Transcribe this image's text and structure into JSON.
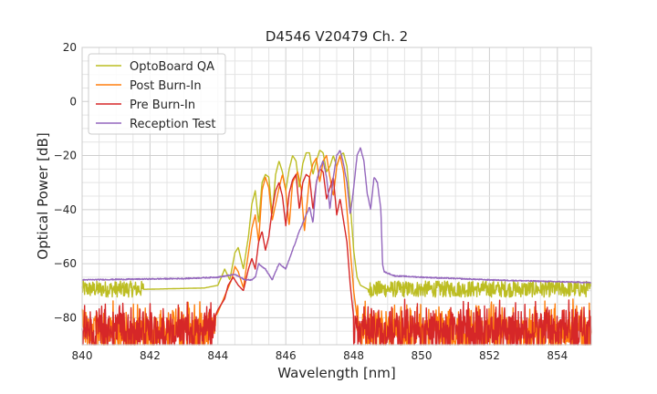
{
  "chart_data": {
    "type": "line",
    "title": "D4546 V20479 Ch. 2",
    "xlabel": "Wavelength [nm]",
    "ylabel": "Optical Power [dB]",
    "xlim": [
      840,
      855
    ],
    "ylim": [
      -90,
      20
    ],
    "xticks": [
      840,
      842,
      844,
      846,
      848,
      850,
      852,
      854
    ],
    "yticks": [
      20,
      0,
      -20,
      -40,
      -60,
      -80
    ],
    "x_minor_step": 0.5,
    "y_minor_step": 5,
    "grid": true,
    "legend_position": "top-left",
    "series": [
      {
        "name": "OptoBoard QA",
        "color": "#bcbd22",
        "noise_floor": -70,
        "noise_amplitude": 3,
        "points": [
          [
            840,
            -70
          ],
          [
            843.6,
            -69
          ],
          [
            844,
            -68
          ],
          [
            844.2,
            -62
          ],
          [
            844.35,
            -66
          ],
          [
            844.5,
            -56
          ],
          [
            844.6,
            -54
          ],
          [
            844.75,
            -62
          ],
          [
            844.9,
            -50
          ],
          [
            845,
            -38
          ],
          [
            845.1,
            -33
          ],
          [
            845.2,
            -45
          ],
          [
            845.3,
            -30
          ],
          [
            845.4,
            -27
          ],
          [
            845.5,
            -28
          ],
          [
            845.6,
            -42
          ],
          [
            845.7,
            -27
          ],
          [
            845.8,
            -22
          ],
          [
            845.9,
            -26
          ],
          [
            846,
            -33
          ],
          [
            846.1,
            -25
          ],
          [
            846.2,
            -20
          ],
          [
            846.3,
            -22
          ],
          [
            846.4,
            -32
          ],
          [
            846.5,
            -23
          ],
          [
            846.6,
            -19
          ],
          [
            846.7,
            -19
          ],
          [
            846.8,
            -27
          ],
          [
            846.9,
            -22
          ],
          [
            847,
            -18
          ],
          [
            847.1,
            -19
          ],
          [
            847.2,
            -26
          ],
          [
            847.3,
            -24
          ],
          [
            847.4,
            -20
          ],
          [
            847.5,
            -24
          ],
          [
            847.6,
            -20
          ],
          [
            847.7,
            -19
          ],
          [
            847.8,
            -24
          ],
          [
            847.9,
            -38
          ],
          [
            848,
            -55
          ],
          [
            848.1,
            -65
          ],
          [
            848.2,
            -68
          ],
          [
            848.5,
            -70
          ],
          [
            855,
            -71
          ]
        ]
      },
      {
        "name": "Post Burn-In",
        "color": "#ff7f0e",
        "noise_floor": -80,
        "noise_amplitude": 12,
        "points": [
          [
            840,
            -80
          ],
          [
            843.9,
            -80
          ],
          [
            844,
            -78
          ],
          [
            844.2,
            -72
          ],
          [
            844.4,
            -66
          ],
          [
            844.5,
            -61
          ],
          [
            844.6,
            -63
          ],
          [
            844.75,
            -69
          ],
          [
            844.9,
            -56
          ],
          [
            845,
            -47
          ],
          [
            845.1,
            -42
          ],
          [
            845.2,
            -52
          ],
          [
            845.3,
            -33
          ],
          [
            845.4,
            -28
          ],
          [
            845.5,
            -32
          ],
          [
            845.6,
            -44
          ],
          [
            845.8,
            -32
          ],
          [
            845.9,
            -27
          ],
          [
            846,
            -33
          ],
          [
            846.1,
            -46
          ],
          [
            846.2,
            -30
          ],
          [
            846.35,
            -26
          ],
          [
            846.45,
            -32
          ],
          [
            846.55,
            -48
          ],
          [
            846.7,
            -28
          ],
          [
            846.8,
            -23
          ],
          [
            846.9,
            -21
          ],
          [
            847,
            -30
          ],
          [
            847.1,
            -22
          ],
          [
            847.2,
            -20
          ],
          [
            847.3,
            -28
          ],
          [
            847.4,
            -35
          ],
          [
            847.5,
            -24
          ],
          [
            847.6,
            -20
          ],
          [
            847.7,
            -26
          ],
          [
            847.8,
            -40
          ],
          [
            847.9,
            -55
          ],
          [
            848,
            -70
          ],
          [
            848.1,
            -80
          ],
          [
            855,
            -80
          ]
        ]
      },
      {
        "name": "Pre Burn-In",
        "color": "#d62728",
        "noise_floor": -80,
        "noise_amplitude": 12,
        "points": [
          [
            840,
            -80
          ],
          [
            843.9,
            -80
          ],
          [
            844,
            -77
          ],
          [
            844.2,
            -73
          ],
          [
            844.3,
            -68
          ],
          [
            844.45,
            -65
          ],
          [
            844.6,
            -68
          ],
          [
            844.75,
            -70
          ],
          [
            844.9,
            -62
          ],
          [
            845,
            -58
          ],
          [
            845.1,
            -62
          ],
          [
            845.2,
            -52
          ],
          [
            845.3,
            -48
          ],
          [
            845.4,
            -55
          ],
          [
            845.5,
            -50
          ],
          [
            845.6,
            -40
          ],
          [
            845.7,
            -33
          ],
          [
            845.8,
            -30
          ],
          [
            845.9,
            -35
          ],
          [
            846,
            -46
          ],
          [
            846.1,
            -34
          ],
          [
            846.2,
            -29
          ],
          [
            846.3,
            -27
          ],
          [
            846.4,
            -40
          ],
          [
            846.5,
            -30
          ],
          [
            846.6,
            -27
          ],
          [
            846.7,
            -28
          ],
          [
            846.8,
            -40
          ],
          [
            846.9,
            -30
          ],
          [
            847,
            -25
          ],
          [
            847.1,
            -26
          ],
          [
            847.2,
            -36
          ],
          [
            847.3,
            -32
          ],
          [
            847.4,
            -28
          ],
          [
            847.5,
            -42
          ],
          [
            847.6,
            -36
          ],
          [
            847.7,
            -44
          ],
          [
            847.8,
            -52
          ],
          [
            847.9,
            -68
          ],
          [
            848,
            -80
          ],
          [
            855,
            -80
          ]
        ]
      },
      {
        "name": "Reception Test",
        "color": "#9467bd",
        "noise_floor": null,
        "noise_amplitude": 0,
        "points": [
          [
            840,
            -66
          ],
          [
            843,
            -65.5
          ],
          [
            844,
            -65
          ],
          [
            844.5,
            -64
          ],
          [
            844.8,
            -66
          ],
          [
            845,
            -66
          ],
          [
            845.1,
            -65
          ],
          [
            845.2,
            -60
          ],
          [
            845.4,
            -62
          ],
          [
            845.6,
            -66
          ],
          [
            845.8,
            -60
          ],
          [
            846,
            -62
          ],
          [
            846.2,
            -55
          ],
          [
            846.4,
            -48
          ],
          [
            846.5,
            -45
          ],
          [
            846.6,
            -42
          ],
          [
            846.7,
            -39
          ],
          [
            846.8,
            -45
          ],
          [
            846.9,
            -30
          ],
          [
            847,
            -25
          ],
          [
            847.1,
            -22
          ],
          [
            847.2,
            -28
          ],
          [
            847.3,
            -40
          ],
          [
            847.4,
            -28
          ],
          [
            847.5,
            -20
          ],
          [
            847.6,
            -18
          ],
          [
            847.7,
            -23
          ],
          [
            847.8,
            -30
          ],
          [
            847.9,
            -42
          ],
          [
            848,
            -32
          ],
          [
            848.1,
            -20
          ],
          [
            848.2,
            -17
          ],
          [
            848.3,
            -22
          ],
          [
            848.4,
            -34
          ],
          [
            848.5,
            -40
          ],
          [
            848.6,
            -28
          ],
          [
            848.7,
            -30
          ],
          [
            848.8,
            -40
          ],
          [
            848.85,
            -60
          ],
          [
            848.9,
            -63
          ],
          [
            849.2,
            -64.5
          ],
          [
            850,
            -65
          ],
          [
            852,
            -66
          ],
          [
            855,
            -67
          ]
        ]
      }
    ]
  }
}
